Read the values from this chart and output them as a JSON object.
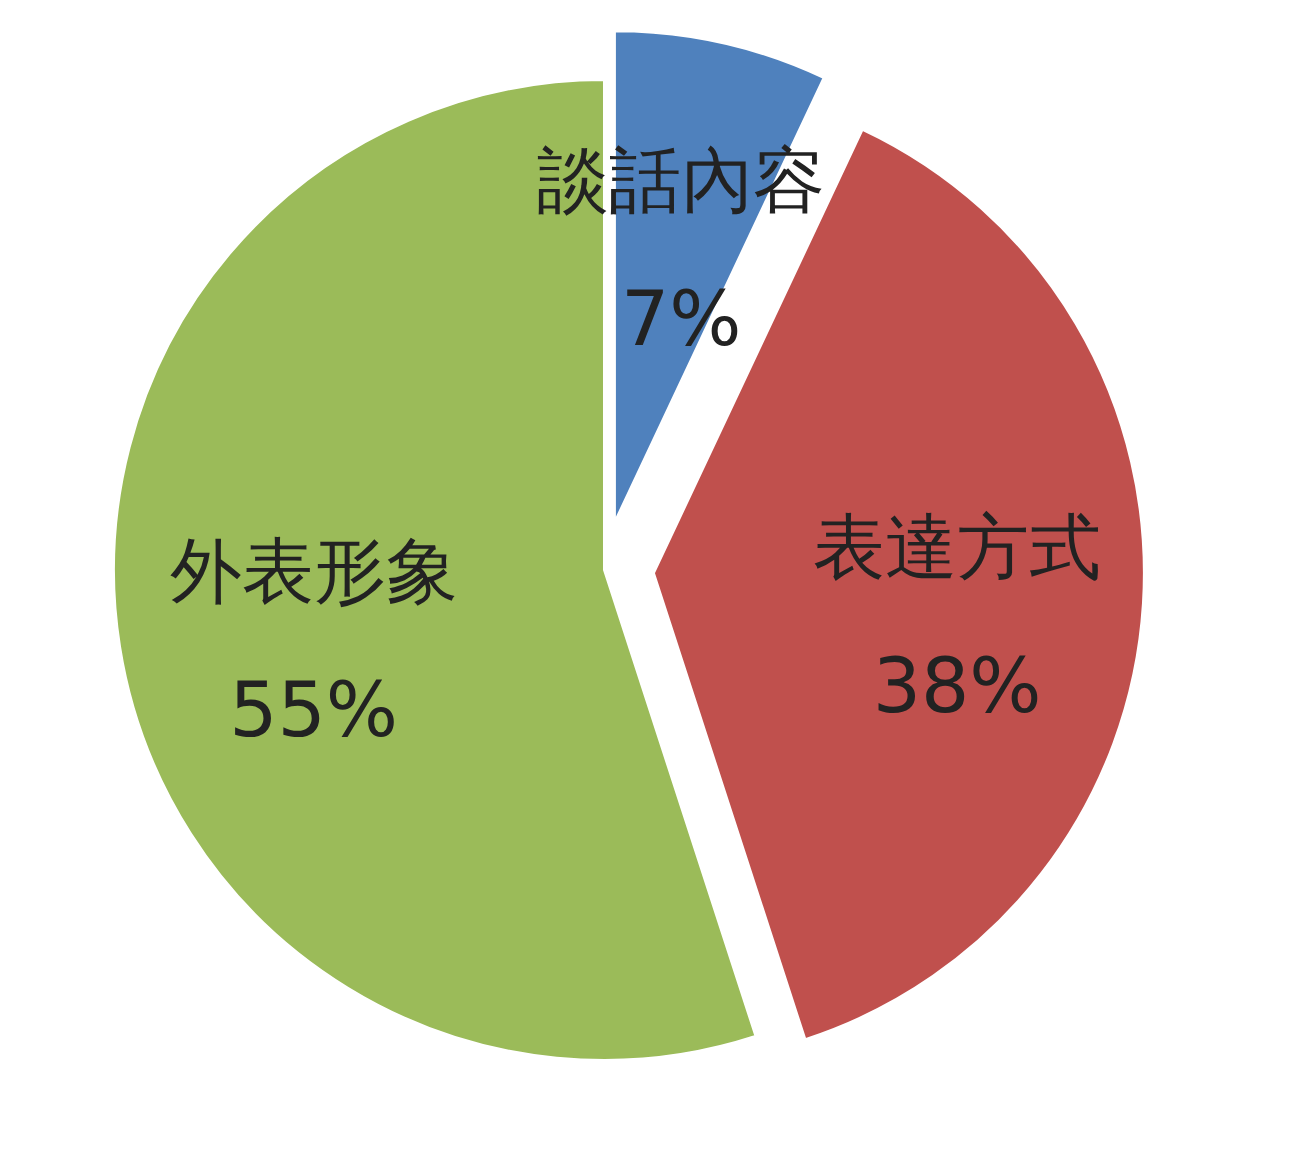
{
  "chart_data": {
    "type": "pie",
    "categories": [
      "談話內容",
      "表達方式",
      "外表形象"
    ],
    "values": [
      7,
      38,
      55
    ],
    "colors": [
      "#4f81bd",
      "#c0504d",
      "#9bbb59"
    ],
    "value_labels": [
      "7%",
      "38%",
      "55%"
    ],
    "legend": false
  }
}
